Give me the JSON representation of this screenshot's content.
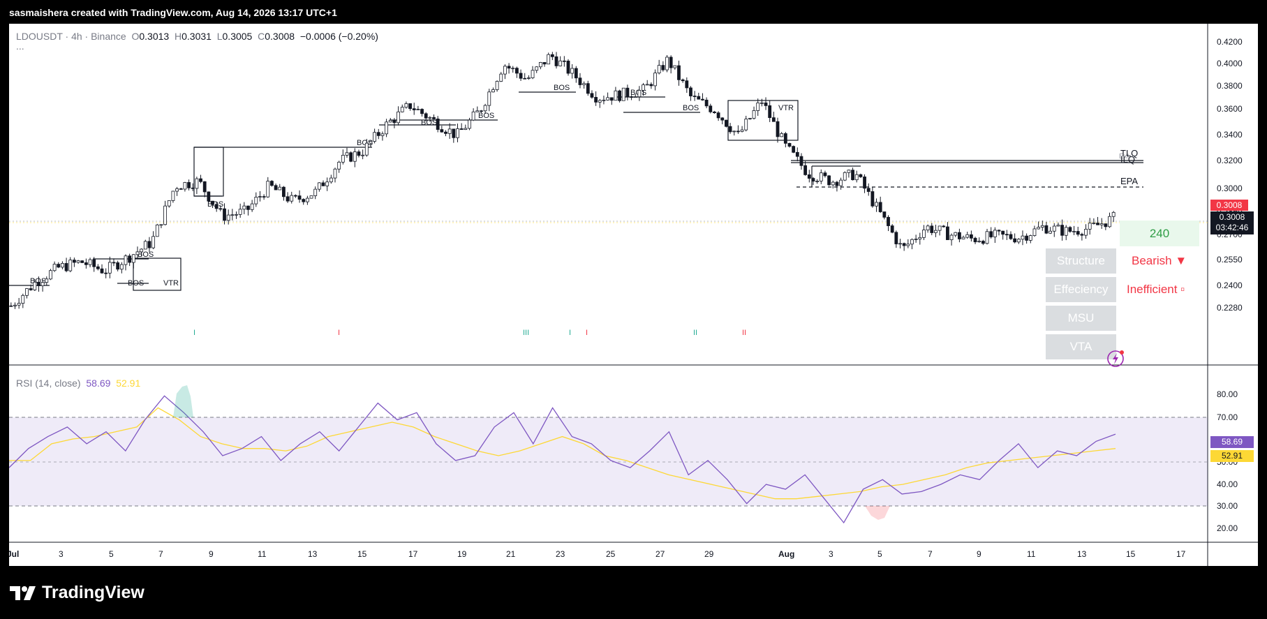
{
  "header": {
    "attribution": "sasmaishera created with TradingView.com, Aug 14, 2026 13:17 UTC+1"
  },
  "legend": {
    "symbol": "LDOUSDT · 4h · Binance",
    "o_label": "O",
    "o": "0.3013",
    "h_label": "H",
    "h": "0.3031",
    "l_label": "L",
    "l": "0.3005",
    "c_label": "C",
    "c": "0.3008",
    "change": "−0.0006 (−0.20%)",
    "more": "..."
  },
  "rsi_legend": {
    "label": "RSI (14, close)",
    "rsi": "58.69",
    "ma": "52.91"
  },
  "price_scale": [
    "0.4200",
    "0.4000",
    "0.3800",
    "0.3600",
    "0.3400",
    "0.3200",
    "0.3000",
    "0.2850",
    "0.2700",
    "0.2550",
    "0.2400",
    "0.2280"
  ],
  "price_tags": {
    "current_red": "0.3008",
    "current": "0.3008",
    "countdown": "03:42:46"
  },
  "rsi_scale": [
    "80.00",
    "70.00",
    "60.00",
    "50.00",
    "40.00",
    "30.00",
    "20.00"
  ],
  "rsi_tags": {
    "rsi": "58.69",
    "ma": "52.91"
  },
  "time_axis": [
    "Jul",
    "3",
    "5",
    "7",
    "9",
    "11",
    "13",
    "15",
    "17",
    "19",
    "21",
    "23",
    "25",
    "27",
    "29",
    "Aug",
    "3",
    "5",
    "7",
    "9",
    "11",
    "13",
    "15",
    "17"
  ],
  "annotations": {
    "bos": "BOS",
    "vtr": "VTR",
    "tlq": "TLQ",
    "ilq": "ILQ",
    "epa": "EPA",
    "ext": "Ext",
    "ticks": [
      "I",
      "I",
      "III",
      "I",
      "I",
      "II",
      "II"
    ]
  },
  "panel": {
    "timeframe": "240",
    "structure": "Structure",
    "structure_status": "Bearish ▼",
    "efficiency": "Effeciency",
    "efficiency_status": "Inefficient ▫",
    "msu": "MSU",
    "vta": "VTA"
  },
  "footer": {
    "brand": "TradingView"
  },
  "colors": {
    "bull": "#ffffff",
    "bear": "#131722",
    "rsi_line": "#7e57c2",
    "rsi_ma": "#fdd835",
    "bearish": "#f23645",
    "bullish": "#2f9d46"
  },
  "chart_data": [
    {
      "type": "candlestick",
      "title": "LDOUSDT · 4h · Binance",
      "ylim": [
        0.222,
        0.425
      ],
      "x_range": [
        "Jul 1",
        "Aug 17"
      ],
      "approx_close_path": [
        {
          "x": "Jul 1",
          "y": 0.243
        },
        {
          "x": "Jul 3",
          "y": 0.258
        },
        {
          "x": "Jul 4",
          "y": 0.268
        },
        {
          "x": "Jul 5",
          "y": 0.272
        },
        {
          "x": "Jul 6",
          "y": 0.266
        },
        {
          "x": "Jul 7",
          "y": 0.275
        },
        {
          "x": "Jul 8",
          "y": 0.285
        },
        {
          "x": "Jul 8.5",
          "y": 0.322
        },
        {
          "x": "Jul 9",
          "y": 0.325
        },
        {
          "x": "Jul 10",
          "y": 0.302
        },
        {
          "x": "Jul 11",
          "y": 0.305
        },
        {
          "x": "Jul 12",
          "y": 0.322
        },
        {
          "x": "Jul 13",
          "y": 0.312
        },
        {
          "x": "Jul 14",
          "y": 0.318
        },
        {
          "x": "Jul 15",
          "y": 0.338
        },
        {
          "x": "Jul 16",
          "y": 0.345
        },
        {
          "x": "Jul 17",
          "y": 0.362
        },
        {
          "x": "Jul 18",
          "y": 0.375
        },
        {
          "x": "Jul 19",
          "y": 0.365
        },
        {
          "x": "Jul 20",
          "y": 0.355
        },
        {
          "x": "Jul 21",
          "y": 0.372
        },
        {
          "x": "Jul 21.5",
          "y": 0.402
        },
        {
          "x": "Jul 22",
          "y": 0.392
        },
        {
          "x": "Jul 23",
          "y": 0.408
        },
        {
          "x": "Jul 24",
          "y": 0.395
        },
        {
          "x": "Jul 25",
          "y": 0.38
        },
        {
          "x": "Jul 26",
          "y": 0.382
        },
        {
          "x": "Jul 27",
          "y": 0.385
        },
        {
          "x": "Jul 27.5",
          "y": 0.405
        },
        {
          "x": "Jul 28",
          "y": 0.38
        },
        {
          "x": "Jul 29",
          "y": 0.372
        },
        {
          "x": "Jul 30",
          "y": 0.355
        },
        {
          "x": "Jul 31",
          "y": 0.378
        },
        {
          "x": "Aug 1",
          "y": 0.348
        },
        {
          "x": "Aug 2",
          "y": 0.33
        },
        {
          "x": "Aug 3",
          "y": 0.325
        },
        {
          "x": "Aug 4",
          "y": 0.33
        },
        {
          "x": "Aug 4.5",
          "y": 0.305
        },
        {
          "x": "Aug 5",
          "y": 0.28
        },
        {
          "x": "Aug 6",
          "y": 0.295
        },
        {
          "x": "Aug 7",
          "y": 0.29
        },
        {
          "x": "Aug 8",
          "y": 0.287
        },
        {
          "x": "Aug 9",
          "y": 0.289
        },
        {
          "x": "Aug 10",
          "y": 0.288
        },
        {
          "x": "Aug 11",
          "y": 0.295
        },
        {
          "x": "Aug 12",
          "y": 0.292
        },
        {
          "x": "Aug 13",
          "y": 0.294
        },
        {
          "x": "Aug 14",
          "y": 0.3008
        }
      ],
      "levels": [
        {
          "name": "TLQ",
          "y": 0.337
        },
        {
          "name": "ILQ",
          "y": 0.335
        },
        {
          "name": "EPA",
          "y": 0.319
        }
      ]
    },
    {
      "type": "line",
      "title": "RSI (14, close)",
      "ylim": [
        15,
        85
      ],
      "bands": [
        30,
        50,
        70
      ],
      "series": [
        {
          "name": "RSI",
          "values": [
            45,
            53,
            58,
            62,
            55,
            60,
            52,
            65,
            75,
            68,
            60,
            50,
            53,
            58,
            48,
            55,
            60,
            52,
            62,
            72,
            65,
            68,
            55,
            48,
            50,
            62,
            68,
            55,
            70,
            58,
            55,
            48,
            45,
            52,
            60,
            42,
            48,
            40,
            30,
            38,
            36,
            42,
            32,
            22,
            36,
            40,
            34,
            35,
            38,
            42,
            40,
            48,
            55,
            45,
            52,
            50,
            56,
            59
          ]
        },
        {
          "name": "MA",
          "values": [
            48,
            48,
            55,
            57,
            58,
            60,
            62,
            70,
            65,
            58,
            55,
            53,
            53,
            52,
            54,
            58,
            60,
            62,
            64,
            62,
            58,
            55,
            52,
            50,
            52,
            55,
            58,
            55,
            50,
            48,
            45,
            42,
            40,
            38,
            36,
            34,
            32,
            32,
            33,
            34,
            35,
            37,
            38,
            40,
            42,
            45,
            47,
            48,
            49,
            50,
            51,
            52,
            53
          ]
        }
      ]
    }
  ]
}
